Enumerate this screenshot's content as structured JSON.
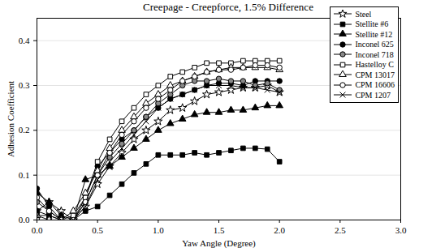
{
  "chart_data": {
    "type": "line",
    "title": "Creepage - Creepforce, 1.5% Difference",
    "x_label": "Yaw Angle (Degree)",
    "y_label": "Adhesion Coefficient",
    "x": [
      0.0,
      0.1,
      0.2,
      0.3,
      0.4,
      0.5,
      0.6,
      0.7,
      0.8,
      0.9,
      1.0,
      1.1,
      1.2,
      1.3,
      1.4,
      1.5,
      1.6,
      1.7,
      1.8,
      1.9,
      2.0
    ],
    "xlim": [
      0,
      3
    ],
    "xticks": [
      {
        "value": 0,
        "label": "0.0"
      },
      {
        "value": 0.5,
        "label": "0.5"
      },
      {
        "value": 1,
        "label": "1.0"
      },
      {
        "value": 1.5,
        "label": "1.5"
      },
      {
        "value": 2,
        "label": "2.0"
      },
      {
        "value": 2.5,
        "label": "2.5"
      },
      {
        "value": 3,
        "label": "3.0"
      }
    ],
    "ylim": [
      0,
      0.45
    ],
    "yticks": [
      {
        "value": 0,
        "label": "0.0"
      },
      0.1,
      0.2,
      0.3,
      0.4
    ],
    "grid": true,
    "legend": "upper right",
    "series": [
      {
        "name": "Steel",
        "color": "#000000",
        "marker": "star_open",
        "values": [
          0.02,
          0.04,
          0.02,
          0.0,
          0.03,
          0.08,
          0.12,
          0.15,
          0.18,
          0.2,
          0.22,
          0.245,
          0.25,
          0.265,
          0.28,
          0.285,
          0.29,
          0.295,
          0.295,
          0.3,
          0.285
        ]
      },
      {
        "name": "Stellite #6",
        "color": "#000000",
        "marker": "square_filled",
        "values": [
          0.02,
          0.01,
          0.0,
          0.0,
          0.02,
          0.03,
          0.055,
          0.08,
          0.105,
          0.125,
          0.145,
          0.145,
          0.145,
          0.15,
          0.145,
          0.15,
          0.155,
          0.16,
          0.16,
          0.158,
          0.13
        ]
      },
      {
        "name": "Stellite #12",
        "color": "#000000",
        "marker": "triangle_filled",
        "values": [
          0.06,
          0.04,
          0.01,
          0.0,
          0.09,
          0.1,
          0.12,
          0.14,
          0.16,
          0.18,
          0.2,
          0.215,
          0.225,
          0.235,
          0.24,
          0.24,
          0.245,
          0.245,
          0.25,
          0.255,
          0.255
        ]
      },
      {
        "name": "Inconel 625",
        "color": "#000000",
        "marker": "circle_filled",
        "values": [
          0.07,
          0.03,
          0.0,
          0.0,
          0.05,
          0.12,
          0.15,
          0.18,
          0.2,
          0.23,
          0.25,
          0.27,
          0.28,
          0.29,
          0.3,
          0.305,
          0.305,
          0.3,
          0.31,
          0.31,
          0.31
        ]
      },
      {
        "name": "Inconel 718",
        "color": "#000000",
        "marker": "circle_half",
        "values": [
          0.04,
          0.02,
          0.0,
          0.0,
          0.04,
          0.1,
          0.14,
          0.17,
          0.2,
          0.23,
          0.26,
          0.28,
          0.3,
          0.31,
          0.31,
          0.315,
          0.31,
          0.31,
          0.3,
          0.305,
          0.29
        ]
      },
      {
        "name": "Hastelloy C",
        "color": "#000000",
        "marker": "square_open",
        "values": [
          0.0,
          0.0,
          0.0,
          0.01,
          0.05,
          0.13,
          0.18,
          0.22,
          0.25,
          0.28,
          0.3,
          0.32,
          0.33,
          0.34,
          0.35,
          0.35,
          0.35,
          0.355,
          0.355,
          0.355,
          0.355
        ]
      },
      {
        "name": "CPM 13017",
        "color": "#000000",
        "marker": "triangle_open",
        "values": [
          0.01,
          0.0,
          0.0,
          0.02,
          0.06,
          0.11,
          0.16,
          0.2,
          0.23,
          0.26,
          0.28,
          0.3,
          0.31,
          0.32,
          0.33,
          0.335,
          0.34,
          0.34,
          0.34,
          0.34,
          0.335
        ]
      },
      {
        "name": "CPM 16606",
        "color": "#000000",
        "marker": "circle_open",
        "values": [
          0.05,
          0.02,
          0.0,
          0.0,
          0.04,
          0.1,
          0.15,
          0.19,
          0.22,
          0.25,
          0.27,
          0.29,
          0.31,
          0.32,
          0.33,
          0.335,
          0.335,
          0.34,
          0.345,
          0.345,
          0.34
        ]
      },
      {
        "name": "CPM 1207",
        "color": "#000000",
        "marker": "times_open",
        "values": [
          0.01,
          0.01,
          0.0,
          0.0,
          0.03,
          0.09,
          0.13,
          0.16,
          0.19,
          0.22,
          0.25,
          0.27,
          0.28,
          0.29,
          0.3,
          0.3,
          0.3,
          0.295,
          0.295,
          0.29,
          0.285
        ]
      }
    ]
  }
}
